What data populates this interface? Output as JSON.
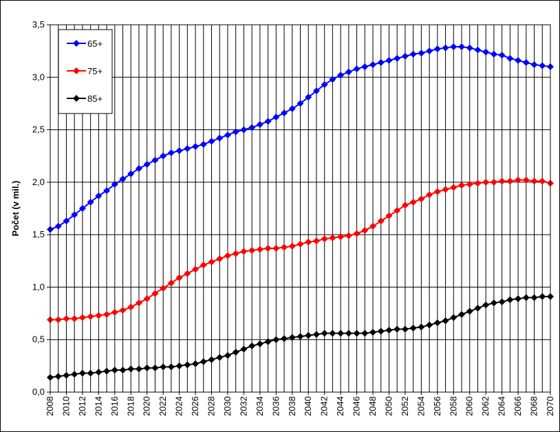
{
  "chart_data": {
    "type": "line",
    "title": "",
    "xlabel": "",
    "ylabel": "Počet (v mil.)",
    "ylim": [
      0,
      3.5
    ],
    "yticks": [
      "0,0",
      "0,5",
      "1,0",
      "1,5",
      "2,0",
      "2,5",
      "3,0",
      "3,5"
    ],
    "xlim": [
      2008,
      2070
    ],
    "xticks": [
      "2008",
      "2010",
      "2012",
      "2014",
      "2016",
      "2018",
      "2020",
      "2022",
      "2024",
      "2026",
      "2028",
      "2030",
      "2032",
      "2034",
      "2036",
      "2038",
      "2040",
      "2042",
      "2044",
      "2046",
      "2048",
      "2050",
      "2052",
      "2054",
      "2056",
      "2058",
      "2060",
      "2062",
      "2064",
      "2066",
      "2068",
      "2070"
    ],
    "grid": true,
    "legend_position": "top-left",
    "x": [
      2008,
      2009,
      2010,
      2011,
      2012,
      2013,
      2014,
      2015,
      2016,
      2017,
      2018,
      2019,
      2020,
      2021,
      2022,
      2023,
      2024,
      2025,
      2026,
      2027,
      2028,
      2029,
      2030,
      2031,
      2032,
      2033,
      2034,
      2035,
      2036,
      2037,
      2038,
      2039,
      2040,
      2041,
      2042,
      2043,
      2044,
      2045,
      2046,
      2047,
      2048,
      2049,
      2050,
      2051,
      2052,
      2053,
      2054,
      2055,
      2056,
      2057,
      2058,
      2059,
      2060,
      2061,
      2062,
      2063,
      2064,
      2065,
      2066,
      2067,
      2068,
      2069,
      2070
    ],
    "series": [
      {
        "name": "65+",
        "color": "#0000ff",
        "values": [
          1.55,
          1.58,
          1.63,
          1.69,
          1.75,
          1.81,
          1.87,
          1.92,
          1.98,
          2.03,
          2.08,
          2.13,
          2.17,
          2.21,
          2.25,
          2.28,
          2.3,
          2.32,
          2.34,
          2.36,
          2.39,
          2.42,
          2.45,
          2.48,
          2.5,
          2.52,
          2.55,
          2.58,
          2.62,
          2.66,
          2.7,
          2.75,
          2.81,
          2.87,
          2.93,
          2.98,
          3.02,
          3.05,
          3.08,
          3.1,
          3.12,
          3.14,
          3.16,
          3.18,
          3.2,
          3.22,
          3.23,
          3.25,
          3.27,
          3.28,
          3.29,
          3.29,
          3.28,
          3.26,
          3.24,
          3.22,
          3.21,
          3.18,
          3.16,
          3.14,
          3.12,
          3.11,
          3.1
        ]
      },
      {
        "name": "75+",
        "color": "#ff0000",
        "values": [
          0.69,
          0.69,
          0.7,
          0.7,
          0.71,
          0.72,
          0.73,
          0.74,
          0.76,
          0.78,
          0.81,
          0.85,
          0.89,
          0.94,
          0.99,
          1.04,
          1.09,
          1.13,
          1.17,
          1.21,
          1.24,
          1.27,
          1.3,
          1.32,
          1.34,
          1.35,
          1.36,
          1.37,
          1.37,
          1.38,
          1.39,
          1.41,
          1.43,
          1.44,
          1.46,
          1.47,
          1.48,
          1.49,
          1.51,
          1.54,
          1.58,
          1.63,
          1.68,
          1.73,
          1.78,
          1.81,
          1.84,
          1.88,
          1.91,
          1.93,
          1.95,
          1.97,
          1.98,
          1.99,
          2.0,
          2.0,
          2.01,
          2.01,
          2.02,
          2.02,
          2.01,
          2.01,
          1.99
        ]
      },
      {
        "name": "85+",
        "color": "#000000",
        "values": [
          0.14,
          0.15,
          0.16,
          0.17,
          0.18,
          0.18,
          0.19,
          0.2,
          0.21,
          0.21,
          0.22,
          0.22,
          0.23,
          0.23,
          0.24,
          0.24,
          0.25,
          0.26,
          0.27,
          0.29,
          0.31,
          0.33,
          0.35,
          0.38,
          0.41,
          0.44,
          0.46,
          0.48,
          0.5,
          0.51,
          0.52,
          0.53,
          0.54,
          0.55,
          0.56,
          0.56,
          0.56,
          0.56,
          0.56,
          0.56,
          0.57,
          0.58,
          0.59,
          0.6,
          0.6,
          0.61,
          0.62,
          0.64,
          0.66,
          0.68,
          0.71,
          0.74,
          0.77,
          0.8,
          0.83,
          0.85,
          0.86,
          0.88,
          0.89,
          0.9,
          0.9,
          0.91,
          0.91
        ]
      }
    ]
  }
}
